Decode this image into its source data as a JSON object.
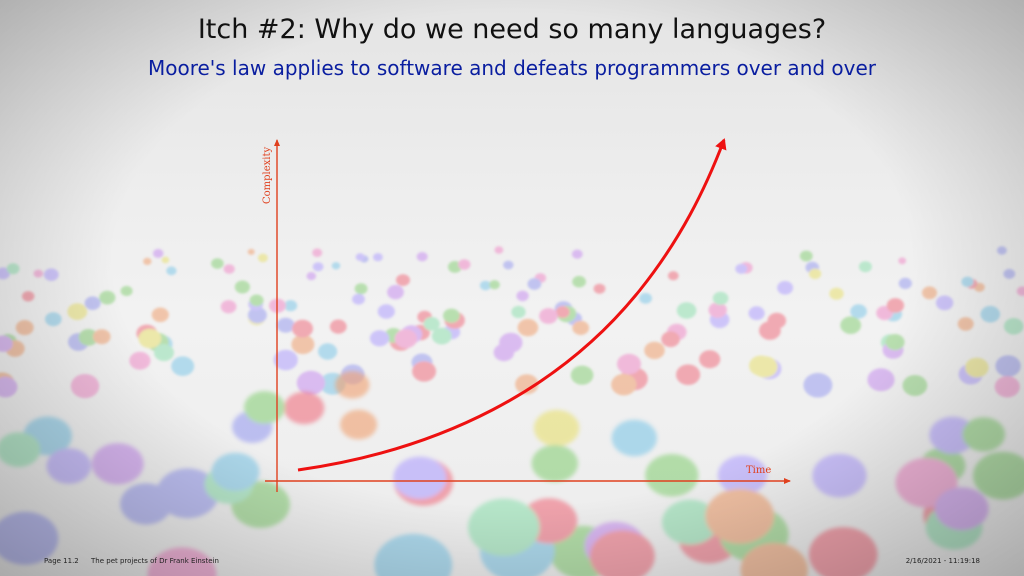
{
  "slide": {
    "title": "Itch #2: Why do we need so many languages?",
    "subtitle": "Moore's law applies to software and defeats programmers over and over"
  },
  "diagram": {
    "y_axis_label": "Complexity",
    "x_axis_label": "Time",
    "axis_color": "#e0401e",
    "curve_color": "#ee1111"
  },
  "footer": {
    "page": "Page 11.2",
    "project": "The pet projects of Dr Frank Einstein",
    "timestamp": "2/16/2021 - 11:19:18"
  },
  "colors": {
    "title": "#111111",
    "subtitle": "#0a1ea0"
  }
}
